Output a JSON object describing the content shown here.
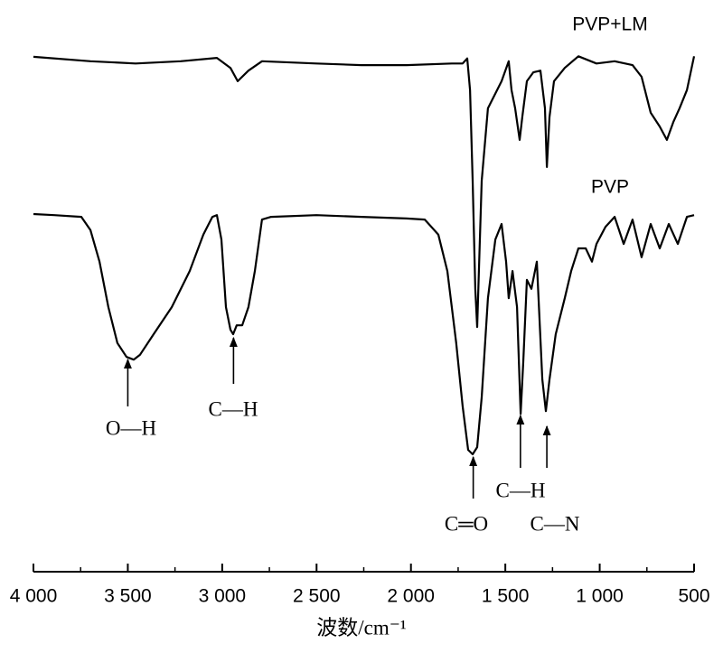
{
  "chart_data": {
    "type": "line",
    "x_label": "波数/cm⁻¹",
    "xlim": [
      4000,
      500
    ],
    "ylim": [
      0,
      100
    ],
    "xticks": [
      {
        "value": 4000,
        "label": "4 000"
      },
      {
        "value": 3500,
        "label": "3 500"
      },
      {
        "value": 3000,
        "label": "3 000"
      },
      {
        "value": 2500,
        "label": "2 500"
      },
      {
        "value": 2000,
        "label": "2 000"
      },
      {
        "value": 1500,
        "label": "1 500"
      },
      {
        "value": 1000,
        "label": "1 000"
      },
      500
    ],
    "xminorticks": [
      3750,
      3250,
      2750,
      2250,
      1750,
      1250,
      750
    ],
    "series": [
      {
        "name": "PVP+LM",
        "color": "#000000",
        "x": [
          4000,
          3698,
          3459,
          3220,
          3028,
          2956,
          2918,
          2861,
          2789,
          2501,
          2262,
          2023,
          1783,
          1726,
          1702,
          1687,
          1673,
          1659,
          1649,
          1640,
          1625,
          1592,
          1520,
          1482,
          1467,
          1448,
          1424,
          1410,
          1386,
          1352,
          1314,
          1290,
          1280,
          1266,
          1242,
          1185,
          1113,
          1017,
          921,
          826,
          778,
          730,
          682,
          644,
          610,
          577,
          538,
          500
        ],
        "values": [
          93.0,
          92.2,
          91.8,
          92.2,
          92.8,
          91.0,
          88.6,
          90.5,
          92.2,
          91.8,
          91.5,
          91.5,
          91.8,
          91.8,
          92.7,
          87.0,
          70.6,
          51.1,
          44.2,
          54.3,
          70.6,
          83.7,
          88.6,
          92.2,
          87.0,
          83.7,
          78.0,
          82.1,
          88.6,
          90.2,
          90.5,
          83.7,
          73.1,
          82.1,
          88.6,
          91.0,
          93.1,
          91.8,
          92.2,
          91.5,
          89.4,
          82.9,
          80.4,
          78.0,
          81.2,
          83.7,
          87.0,
          93.1
        ]
      },
      {
        "name": "PVP",
        "color": "#000000",
        "x": [
          4000,
          3890,
          3746,
          3698,
          3650,
          3603,
          3555,
          3507,
          3469,
          3435,
          3363,
          3267,
          3172,
          3100,
          3052,
          3028,
          3004,
          2980,
          2956,
          2942,
          2923,
          2894,
          2861,
          2827,
          2789,
          2741,
          2501,
          2262,
          2023,
          1927,
          1855,
          1807,
          1760,
          1726,
          1697,
          1673,
          1649,
          1625,
          1592,
          1553,
          1520,
          1496,
          1482,
          1462,
          1438,
          1419,
          1405,
          1386,
          1362,
          1333,
          1304,
          1285,
          1266,
          1233,
          1185,
          1151,
          1113,
          1074,
          1041,
          1017,
          969,
          921,
          873,
          826,
          778,
          730,
          682,
          634,
          586,
          538,
          500
        ],
        "values": [
          64.6,
          64.4,
          64.1,
          61.7,
          56.0,
          47.8,
          41.3,
          38.8,
          38.3,
          39.2,
          42.9,
          47.8,
          54.3,
          60.9,
          64.1,
          64.4,
          60.0,
          47.8,
          43.7,
          42.9,
          44.5,
          44.5,
          47.8,
          54.3,
          63.6,
          64.1,
          64.4,
          64.1,
          63.8,
          63.6,
          60.9,
          54.3,
          41.3,
          29.9,
          22.0,
          21.2,
          22.5,
          31.5,
          49.4,
          60.0,
          62.8,
          56.0,
          49.4,
          54.3,
          47.8,
          28.5,
          37.9,
          52.7,
          51.1,
          56.0,
          34.7,
          29.0,
          34.7,
          42.9,
          49.4,
          54.3,
          58.4,
          58.4,
          56.0,
          59.2,
          62.3,
          64.1,
          59.2,
          63.6,
          56.8,
          62.8,
          58.4,
          62.8,
          59.2,
          64.1,
          64.4
        ]
      }
    ],
    "annotations": [
      {
        "text": "O—H",
        "x": 3500
      },
      {
        "text": "C—H",
        "x": 2940
      },
      {
        "text": "C═O",
        "x": 1670
      },
      {
        "text": "C—H",
        "x": 1420
      },
      {
        "text": "C—N",
        "x": 1280
      }
    ]
  }
}
